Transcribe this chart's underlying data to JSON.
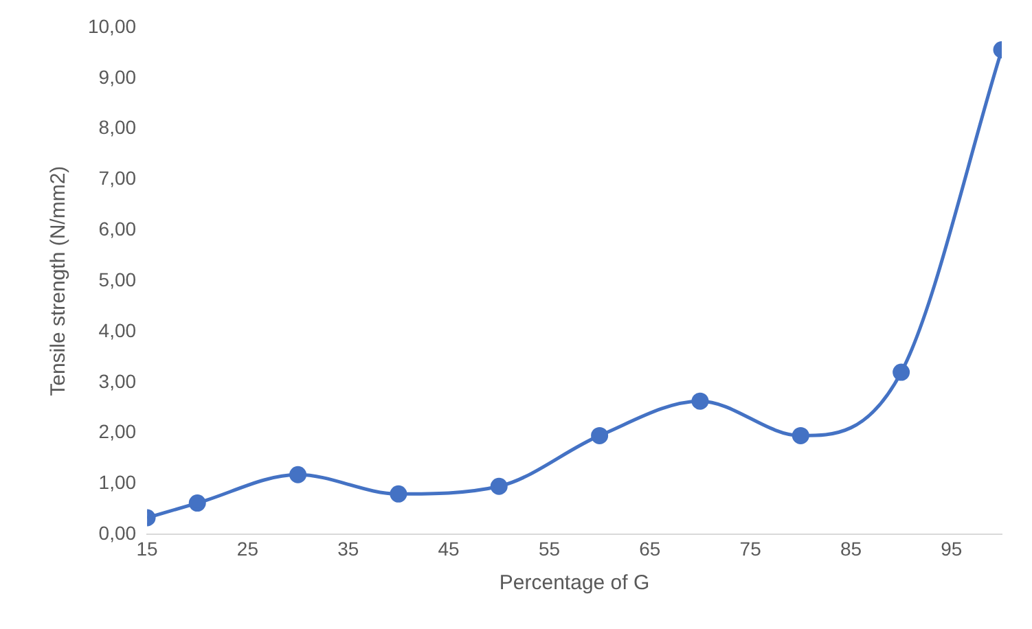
{
  "chart_data": {
    "type": "line",
    "xlabel": "Percentage of G",
    "ylabel": "Tensile strength (N/mm2)",
    "x": [
      15,
      20,
      30,
      40,
      50,
      60,
      70,
      80,
      90,
      100
    ],
    "series": [
      {
        "color": "#4472c4",
        "values": [
          0.33,
          0.62,
          1.18,
          0.8,
          0.95,
          1.95,
          2.63,
          1.95,
          3.2,
          9.56
        ]
      }
    ],
    "xlim": [
      15,
      100
    ],
    "xticks": [
      15,
      25,
      35,
      45,
      55,
      65,
      75,
      85,
      95
    ],
    "ylim": [
      0,
      10
    ],
    "yticks": [
      {
        "value": 0,
        "label": "0,00"
      },
      {
        "value": 1,
        "label": "1,00"
      },
      {
        "value": 2,
        "label": "2,00"
      },
      {
        "value": 3,
        "label": "3,00"
      },
      {
        "value": 4,
        "label": "4,00"
      },
      {
        "value": 5,
        "label": "5,00"
      },
      {
        "value": 6,
        "label": "6,00"
      },
      {
        "value": 7,
        "label": "7,00"
      },
      {
        "value": 8,
        "label": "8,00"
      },
      {
        "value": 9,
        "label": "9,00"
      },
      {
        "value": 10,
        "label": "10,00"
      }
    ],
    "grid": false,
    "legend": false,
    "marker": "circle",
    "line_style": "solid"
  }
}
